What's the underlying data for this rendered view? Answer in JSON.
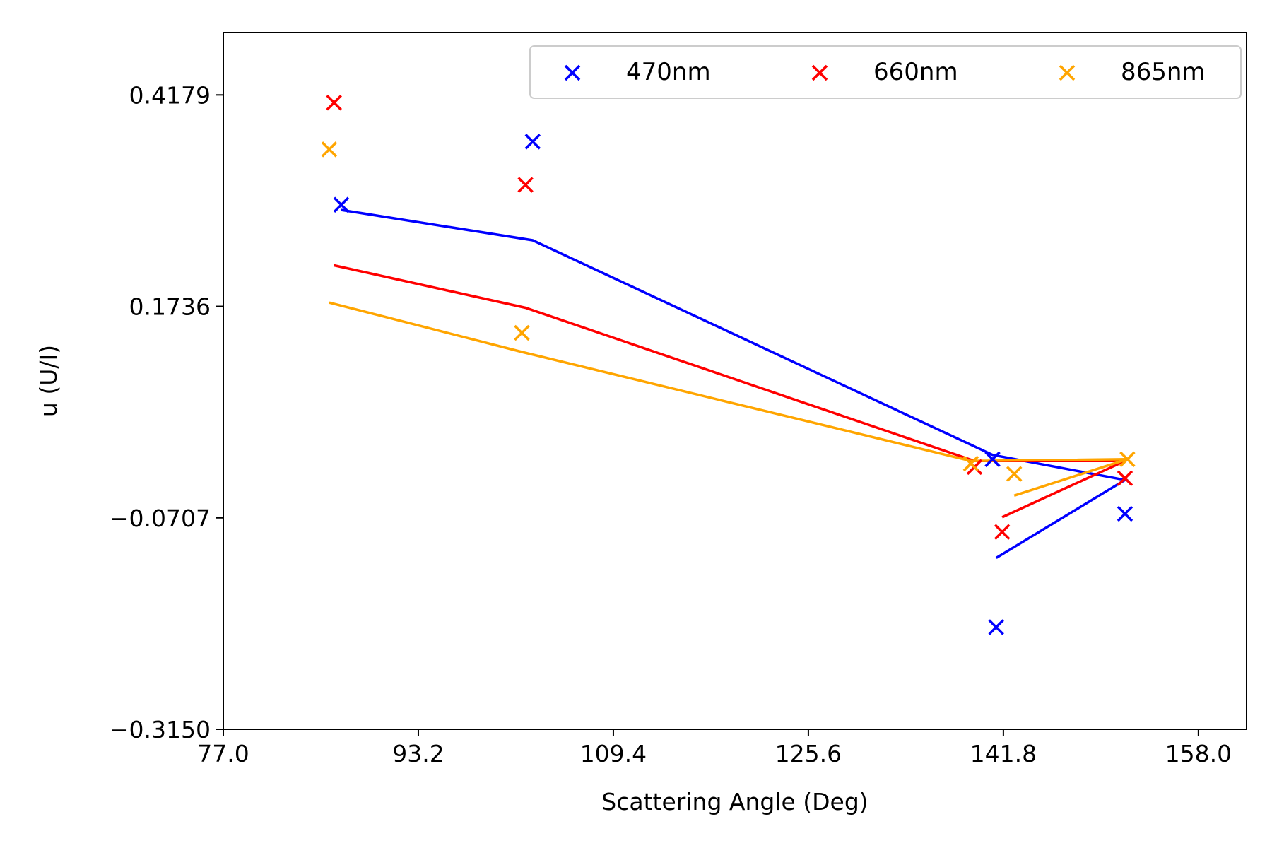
{
  "chart_data": {
    "type": "scatter",
    "title": "",
    "xlabel": "Scattering Angle (Deg)",
    "ylabel": "u (U/I)",
    "xlim": [
      77.0,
      162.0
    ],
    "ylim": [
      -0.315,
      0.49
    ],
    "xticks": [
      77.0,
      93.2,
      109.4,
      125.6,
      141.8,
      158.0
    ],
    "xtick_labels": [
      "77.0",
      "93.2",
      "109.4",
      "125.6",
      "141.8",
      "158.0"
    ],
    "yticks": [
      -0.315,
      -0.0707,
      0.1736,
      0.4179
    ],
    "ytick_labels": [
      "−0.3150",
      "−0.0707",
      "0.1736",
      "0.4179"
    ],
    "grid": false,
    "legend_position": "top-right",
    "series": [
      {
        "name": "470nm",
        "color": "#0000ff",
        "points": [
          {
            "x": 86.8,
            "y": 0.291
          },
          {
            "x": 102.7,
            "y": 0.364
          },
          {
            "x": 141.2,
            "y": -0.197
          },
          {
            "x": 151.9,
            "y": -0.066
          },
          {
            "x": 140.9,
            "y": -0.003
          }
        ],
        "fit_line": [
          {
            "x": 86.8,
            "y": 0.285
          },
          {
            "x": 102.7,
            "y": 0.25
          },
          {
            "x": 140.9,
            "y": 0.002
          },
          {
            "x": 151.9,
            "y": -0.027
          },
          {
            "x": 141.2,
            "y": -0.117
          }
        ]
      },
      {
        "name": "660nm",
        "color": "#ff0000",
        "points": [
          {
            "x": 86.2,
            "y": 0.409
          },
          {
            "x": 102.1,
            "y": 0.314
          },
          {
            "x": 141.7,
            "y": -0.087
          },
          {
            "x": 151.9,
            "y": -0.025
          },
          {
            "x": 139.4,
            "y": -0.012
          }
        ],
        "fit_line": [
          {
            "x": 86.2,
            "y": 0.221
          },
          {
            "x": 102.1,
            "y": 0.172
          },
          {
            "x": 139.4,
            "y": -0.005
          },
          {
            "x": 151.9,
            "y": -0.005
          },
          {
            "x": 141.7,
            "y": -0.07
          }
        ]
      },
      {
        "name": "865nm",
        "color": "#ffa500",
        "points": [
          {
            "x": 85.8,
            "y": 0.355
          },
          {
            "x": 101.8,
            "y": 0.143
          },
          {
            "x": 142.7,
            "y": -0.02
          },
          {
            "x": 152.1,
            "y": -0.003
          },
          {
            "x": 139.1,
            "y": -0.008
          }
        ],
        "fit_line": [
          {
            "x": 85.8,
            "y": 0.178
          },
          {
            "x": 101.8,
            "y": 0.121
          },
          {
            "x": 139.1,
            "y": -0.005
          },
          {
            "x": 152.1,
            "y": -0.003
          },
          {
            "x": 142.7,
            "y": -0.045
          }
        ]
      }
    ]
  }
}
